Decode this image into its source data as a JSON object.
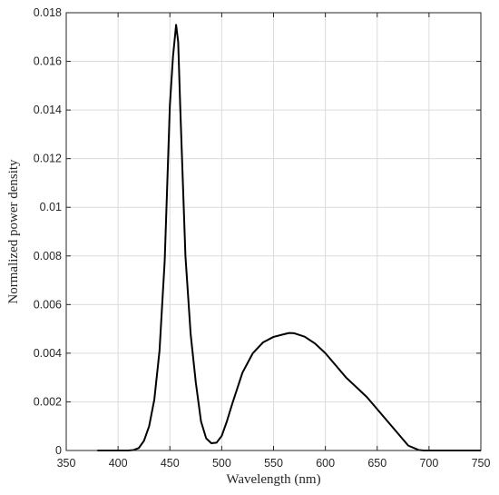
{
  "chart_data": {
    "type": "line",
    "xlabel": "Wavelength (nm)",
    "ylabel": "Normalized power density",
    "xlim": [
      350,
      750
    ],
    "ylim": [
      0,
      0.018
    ],
    "xticks": [
      350,
      400,
      450,
      500,
      550,
      600,
      650,
      700,
      750
    ],
    "yticks": [
      0,
      0.002,
      0.004,
      0.006,
      0.008,
      0.01,
      0.012,
      0.014,
      0.016,
      0.018
    ],
    "ytick_labels": [
      "0",
      "0.002",
      "0.004",
      "0.006",
      "0.008",
      "0.01",
      "0.012",
      "0.014",
      "0.016",
      "0.018"
    ],
    "grid": true,
    "series": [
      {
        "color": "#000000",
        "x": [
          380,
          400,
          410,
          415,
          420,
          425,
          430,
          435,
          440,
          445,
          450,
          453,
          456,
          458,
          460,
          465,
          470,
          475,
          480,
          485,
          490,
          495,
          500,
          505,
          510,
          520,
          530,
          540,
          550,
          560,
          565,
          570,
          580,
          590,
          600,
          610,
          620,
          630,
          640,
          650,
          660,
          670,
          680,
          690,
          695,
          700,
          720,
          750
        ],
        "y": [
          0,
          0,
          0,
          2e-05,
          0.0001,
          0.0004,
          0.001,
          0.0021,
          0.0041,
          0.0078,
          0.0142,
          0.0162,
          0.0175,
          0.0168,
          0.0141,
          0.008,
          0.0048,
          0.0028,
          0.0012,
          0.0005,
          0.0003,
          0.00032,
          0.0006,
          0.0012,
          0.0019,
          0.0032,
          0.004,
          0.00445,
          0.00467,
          0.00478,
          0.00483,
          0.00482,
          0.00468,
          0.0044,
          0.004,
          0.0035,
          0.003,
          0.0026,
          0.0022,
          0.0017,
          0.0012,
          0.0007,
          0.0002,
          2e-05,
          0,
          0,
          0,
          0
        ]
      }
    ]
  }
}
